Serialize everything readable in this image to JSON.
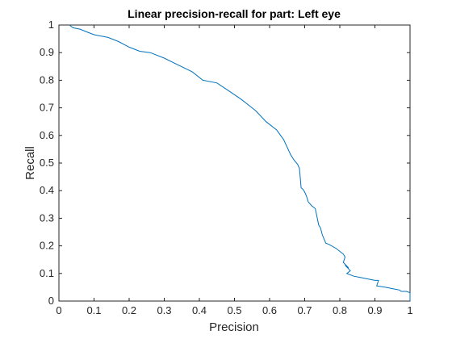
{
  "chart_data": {
    "type": "line",
    "title": "Linear precision-recall for part: Left eye",
    "xlabel": "Precision",
    "ylabel": "Recall",
    "xlim": [
      0,
      1
    ],
    "ylim": [
      0,
      1
    ],
    "xticks": [
      "0",
      "0.1",
      "0.2",
      "0.3",
      "0.4",
      "0.5",
      "0.6",
      "0.7",
      "0.8",
      "0.9",
      "1"
    ],
    "yticks": [
      "0",
      "0.1",
      "0.2",
      "0.3",
      "0.4",
      "0.5",
      "0.6",
      "0.7",
      "0.8",
      "0.9",
      "1"
    ],
    "grid": false,
    "line_color": "#0072BD",
    "series": [
      {
        "x": [
          0.03,
          0.04,
          0.06,
          0.08,
          0.1,
          0.14,
          0.17,
          0.2,
          0.23,
          0.26,
          0.3,
          0.34,
          0.38,
          0.41,
          0.45,
          0.48,
          0.52,
          0.56,
          0.59,
          0.62,
          0.64,
          0.66,
          0.67,
          0.68,
          0.685,
          0.69,
          0.695,
          0.7,
          0.705,
          0.71,
          0.72,
          0.73,
          0.74,
          0.745,
          0.75,
          0.76,
          0.77,
          0.79,
          0.81,
          0.815,
          0.81,
          0.825,
          0.815,
          0.83,
          0.82,
          0.84,
          0.86,
          0.88,
          0.9,
          0.91,
          0.905,
          0.93,
          0.95,
          0.97,
          0.975,
          0.99,
          1.0,
          1.0
        ],
        "y": [
          1.0,
          0.99,
          0.985,
          0.975,
          0.965,
          0.955,
          0.94,
          0.92,
          0.905,
          0.9,
          0.88,
          0.855,
          0.83,
          0.8,
          0.79,
          0.765,
          0.73,
          0.69,
          0.65,
          0.62,
          0.585,
          0.53,
          0.51,
          0.495,
          0.48,
          0.41,
          0.405,
          0.395,
          0.38,
          0.36,
          0.345,
          0.335,
          0.275,
          0.265,
          0.24,
          0.21,
          0.205,
          0.19,
          0.17,
          0.16,
          0.14,
          0.12,
          0.13,
          0.11,
          0.1,
          0.09,
          0.085,
          0.08,
          0.075,
          0.075,
          0.055,
          0.05,
          0.045,
          0.04,
          0.035,
          0.035,
          0.03,
          0.0
        ]
      }
    ]
  }
}
